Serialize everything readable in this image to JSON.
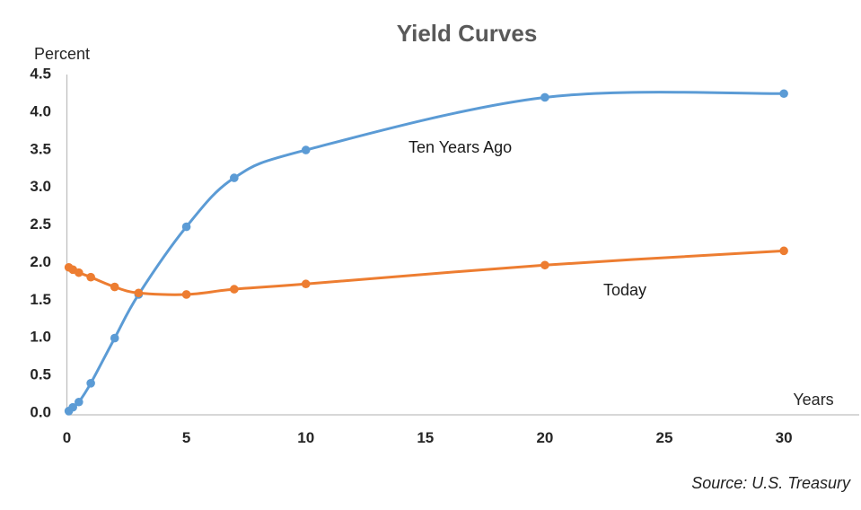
{
  "window": {
    "background": "#FFFFFF"
  },
  "chart_data": {
    "type": "line",
    "title": "Yield Curves",
    "ylabel": "Percent",
    "xlabel": "Years",
    "source": "Source: U.S. Treasury",
    "xlim": [
      0,
      30
    ],
    "ylim": [
      0,
      4.5
    ],
    "grid": false,
    "legend_position": "inline-annotations",
    "x_tick_values": [
      0,
      5,
      10,
      15,
      20,
      25,
      30
    ],
    "x_tick_labels": [
      "0",
      "5",
      "10",
      "15",
      "20",
      "25",
      "30"
    ],
    "y_tick_values": [
      4.5,
      4.0,
      3.5,
      3.0,
      2.5,
      2.0,
      1.5,
      1.0,
      0.5,
      0.0
    ],
    "y_tick_labels": [
      "4.5",
      "4.0",
      "3.5",
      "3.0",
      "2.5",
      "2.0",
      "1.5",
      "1.0",
      "0.5",
      "0.0"
    ],
    "x_maturities_years": [
      0.08,
      0.25,
      0.5,
      1,
      2,
      3,
      5,
      7,
      10,
      20,
      30
    ],
    "series": [
      {
        "name": "Ten Years Ago",
        "color": "#5B9BD5",
        "values": [
          0.05,
          0.1,
          0.17,
          0.42,
          1.02,
          1.6,
          2.5,
          3.15,
          3.52,
          4.22,
          4.27
        ]
      },
      {
        "name": "Today",
        "color": "#ED7D31",
        "values": [
          1.96,
          1.93,
          1.89,
          1.83,
          1.7,
          1.62,
          1.6,
          1.67,
          1.74,
          1.99,
          2.18
        ]
      }
    ],
    "axis_color": "#BFBFBF",
    "title_color": "#595959",
    "text_color": "#262626"
  }
}
